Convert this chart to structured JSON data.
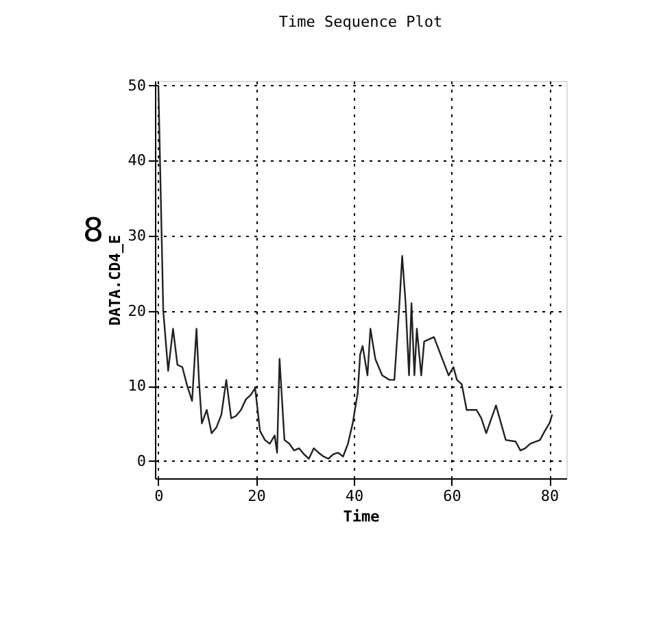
{
  "chart_data": {
    "type": "line",
    "title": "Time Sequence Plot",
    "xlabel": "Time",
    "ylabel": "DATA.CD4_E",
    "annotations": [
      "8"
    ],
    "x": [
      0,
      1.0,
      2.0,
      3.0,
      3.9,
      4.9,
      5.9,
      6.9,
      7.8,
      8.3,
      8.9,
      9.9,
      10.9,
      11.9,
      12.9,
      13.9,
      14.9,
      15.9,
      16.9,
      17.9,
      18.9,
      19.8,
      20.8,
      21.8,
      22.8,
      23.8,
      24.3,
      24.8,
      25.8,
      26.8,
      27.8,
      28.8,
      29.8,
      30.8,
      31.8,
      32.8,
      33.8,
      34.8,
      35.8,
      36.8,
      37.8,
      38.8,
      39.8,
      40.8,
      41.3,
      41.8,
      42.8,
      43.4,
      44.4,
      45.8,
      47.3,
      48.3,
      49.3,
      49.9,
      50.6,
      51.3,
      51.8,
      52.4,
      52.9,
      53.8,
      54.4,
      56.4,
      57.4,
      58.4,
      59.4,
      60.4,
      61.1,
      62.1,
      63.1,
      65.1,
      66.1,
      67.1,
      69.1,
      70.1,
      71.1,
      73.1,
      74.1,
      75.1,
      76.1,
      78.1,
      79.1,
      80.1,
      80.6
    ],
    "series": [
      {
        "color": "#222222",
        "values": [
          50,
          20,
          12,
          17.6,
          12.8,
          12.5,
          10,
          8,
          17.6,
          10.8,
          5,
          6.8,
          3.7,
          4.5,
          6.2,
          10.8,
          5.7,
          6,
          6.8,
          8.2,
          8.8,
          9.7,
          4,
          2.8,
          2.3,
          3.4,
          1.1,
          13.6,
          2.8,
          2.3,
          1.4,
          1.7,
          0.9,
          0.3,
          1.7,
          1.1,
          0.6,
          0.3,
          0.9,
          1.1,
          0.6,
          2.3,
          5.1,
          9.1,
          14.2,
          15.3,
          11.4,
          17.6,
          13.6,
          11.4,
          10.8,
          10.8,
          20.5,
          27.3,
          21,
          11.4,
          21,
          11.4,
          17.6,
          11.4,
          15.9,
          16.5,
          14.8,
          13.1,
          11.4,
          12.5,
          10.8,
          10.2,
          6.8,
          6.8,
          5.7,
          3.7,
          7.4,
          5.1,
          2.8,
          2.6,
          1.4,
          1.7,
          2.3,
          2.8,
          4,
          5.1,
          6.2
        ]
      }
    ],
    "xlim": [
      -0.7,
      83.5
    ],
    "ylim": [
      -2.3,
      50.6
    ],
    "xticks": [
      0,
      20,
      40,
      60,
      80
    ],
    "yticks": [
      0,
      10,
      20,
      30,
      40,
      50
    ],
    "grid": true,
    "line_style": "solid",
    "marker": "none"
  }
}
